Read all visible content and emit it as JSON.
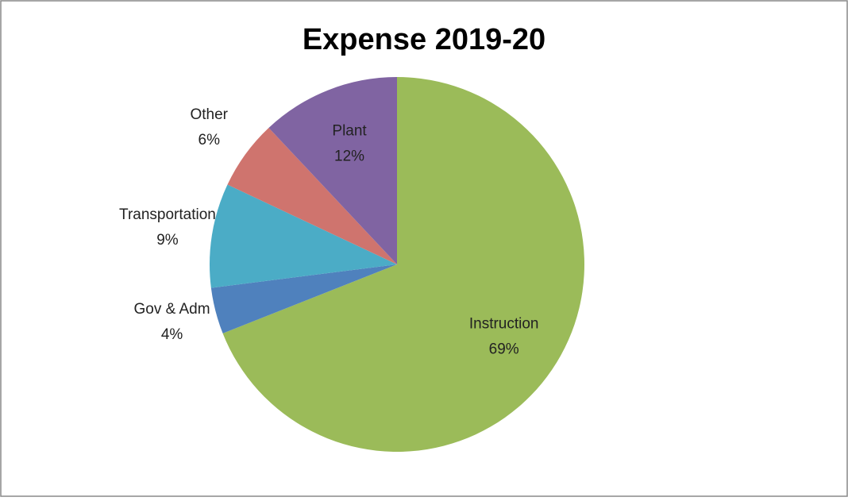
{
  "chart_data": {
    "type": "pie",
    "title": "Expense 2019-20",
    "categories": [
      "Instruction",
      "Gov & Adm",
      "Transportation",
      "Other",
      "Plant"
    ],
    "values": [
      69,
      4,
      9,
      6,
      12
    ],
    "value_labels": [
      "69%",
      "4%",
      "9%",
      "6%",
      "12%"
    ],
    "colors": [
      "#9bbb59",
      "#4f81bd",
      "#4bacc6",
      "#cf746e",
      "#8064a2"
    ]
  }
}
